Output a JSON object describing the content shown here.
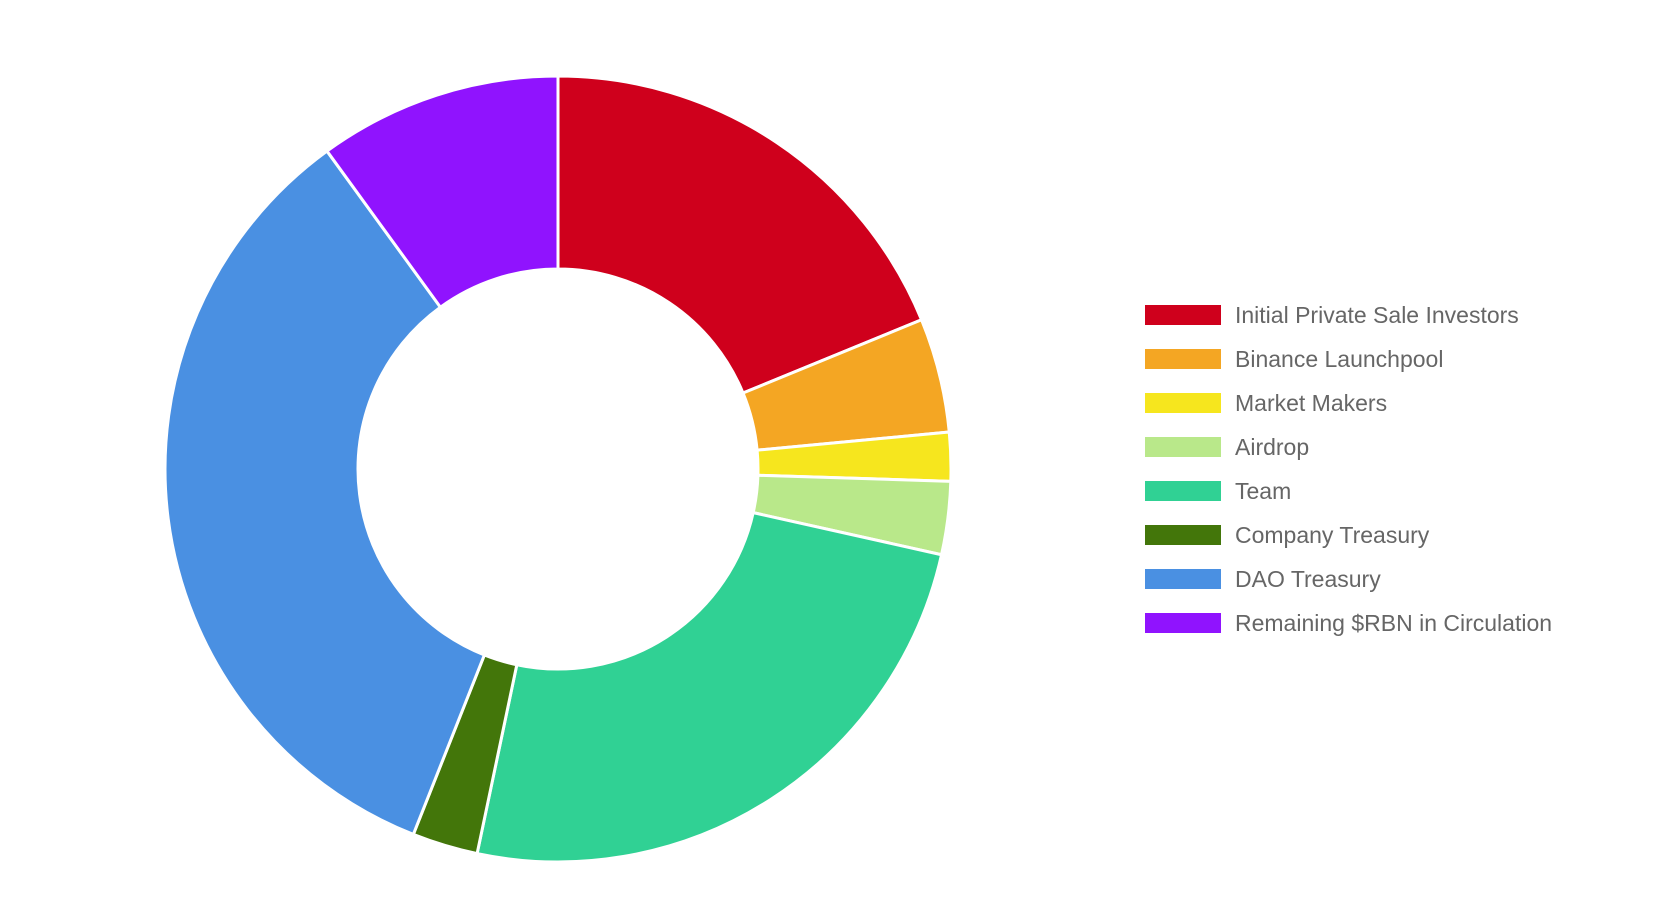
{
  "chart_data": {
    "type": "doughnut",
    "title": "",
    "legend_position": "right",
    "start_angle_deg": 0,
    "direction": "clockwise",
    "series": [
      {
        "name": "Initial Private Sale Investors",
        "value": 18.8,
        "color": "#cf001c"
      },
      {
        "name": "Binance Launchpool",
        "value": 4.7,
        "color": "#f4a623"
      },
      {
        "name": "Market Makers",
        "value": 2.0,
        "color": "#f6e61e"
      },
      {
        "name": "Airdrop",
        "value": 3.0,
        "color": "#b9e88a"
      },
      {
        "name": "Team",
        "value": 24.8,
        "color": "#30d194"
      },
      {
        "name": "Company Treasury",
        "value": 2.7,
        "color": "#43760a"
      },
      {
        "name": "DAO Treasury",
        "value": 34.0,
        "color": "#4a90e2"
      },
      {
        "name": "Remaining $RBN in Circulation",
        "value": 10.0,
        "color": "#9013fe"
      }
    ]
  }
}
